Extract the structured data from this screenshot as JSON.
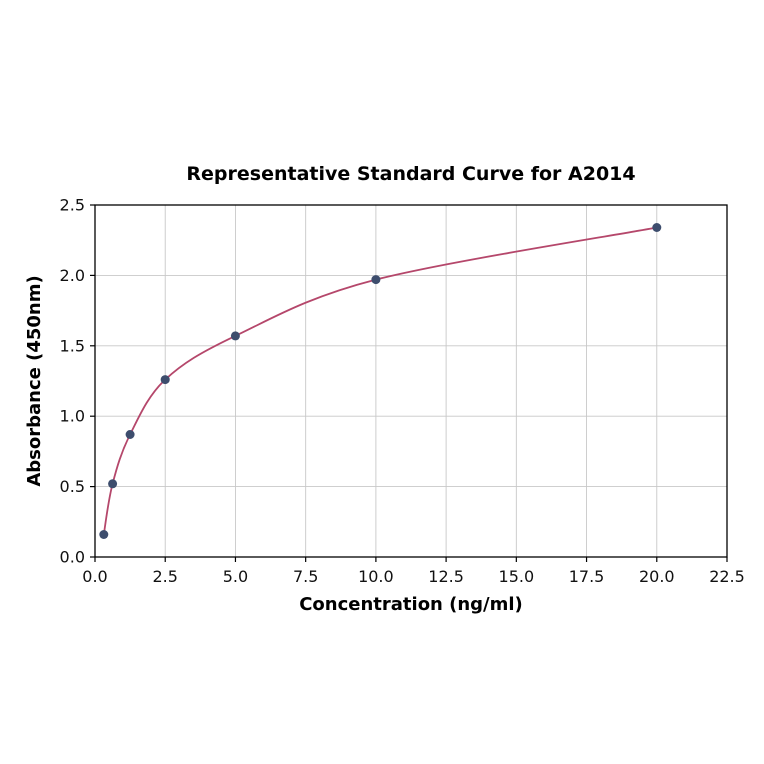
{
  "chart_data": {
    "type": "scatter",
    "title": "Representative Standard Curve for A2014",
    "xlabel": "Concentration (ng/ml)",
    "ylabel": "Absorbance (450nm)",
    "x": [
      0.3125,
      0.625,
      1.25,
      2.5,
      5.0,
      10.0,
      20.0
    ],
    "y": [
      0.16,
      0.52,
      0.87,
      1.26,
      1.57,
      1.97,
      2.34
    ],
    "xlim": [
      0,
      22.5
    ],
    "ylim": [
      0,
      2.5
    ],
    "xticks": [
      0,
      2.5,
      5,
      7.5,
      10,
      12.5,
      15,
      17.5,
      20,
      22.5
    ],
    "xtick_labels": [
      "0.0",
      "2.5",
      "5.0",
      "7.5",
      "10.0",
      "12.5",
      "15.0",
      "17.5",
      "20.0",
      "22.5"
    ],
    "yticks": [
      0,
      0.5,
      1.0,
      1.5,
      2.0,
      2.5
    ],
    "ytick_labels": [
      "0.0",
      "0.5",
      "1.0",
      "1.5",
      "2.0",
      "2.5"
    ],
    "grid": true,
    "legend_position": "none",
    "marker_shape": "circle",
    "colors": {
      "curve": "#b5476b",
      "marker": "#3d4d6d",
      "grid": "#c8c8c8",
      "axis": "#000000",
      "background": "#ffffff"
    }
  }
}
